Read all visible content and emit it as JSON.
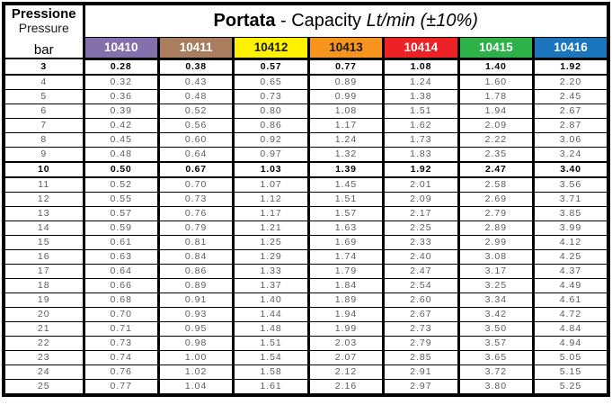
{
  "header": {
    "pressure_label_it": "Pressione",
    "pressure_label_en": "Pressure",
    "unit_label": "bar",
    "title_bold": "Portata",
    "title_regular": " - Capacity ",
    "title_italic": "Lt/min (±10%)"
  },
  "columns": [
    {
      "code": "10410",
      "color": "#8470AD",
      "text_color": "#ffffff"
    },
    {
      "code": "10411",
      "color": "#A97D5E",
      "text_color": "#ffffff"
    },
    {
      "code": "10412",
      "color": "#FFF200",
      "text_color": "#1a1a1a"
    },
    {
      "code": "10413",
      "color": "#F7941D",
      "text_color": "#1a1a1a"
    },
    {
      "code": "10414",
      "color": "#EC2227",
      "text_color": "#ffffff"
    },
    {
      "code": "10415",
      "color": "#2DB24A",
      "text_color": "#ffffff"
    },
    {
      "code": "10416",
      "color": "#1B75BC",
      "text_color": "#ffffff"
    }
  ],
  "rows": [
    {
      "bar": "3",
      "bold": true,
      "values": [
        "0.28",
        "0.38",
        "0.57",
        "0.77",
        "1.08",
        "1.40",
        "1.92"
      ]
    },
    {
      "bar": "4",
      "bold": false,
      "values": [
        "0.32",
        "0.43",
        "0.65",
        "0.89",
        "1.24",
        "1.60",
        "2.20"
      ]
    },
    {
      "bar": "5",
      "bold": false,
      "values": [
        "0.36",
        "0.48",
        "0.73",
        "0.99",
        "1.38",
        "1.78",
        "2.45"
      ]
    },
    {
      "bar": "6",
      "bold": false,
      "values": [
        "0.39",
        "0.52",
        "0.80",
        "1.08",
        "1.51",
        "1.94",
        "2.67"
      ]
    },
    {
      "bar": "7",
      "bold": false,
      "values": [
        "0.42",
        "0.56",
        "0.86",
        "1.17",
        "1.62",
        "2.09",
        "2.87"
      ]
    },
    {
      "bar": "8",
      "bold": false,
      "values": [
        "0.45",
        "0.60",
        "0.92",
        "1.24",
        "1.73",
        "2.22",
        "3.06"
      ]
    },
    {
      "bar": "9",
      "bold": false,
      "values": [
        "0.48",
        "0.64",
        "0.97",
        "1.32",
        "1.83",
        "2.35",
        "3.24"
      ]
    },
    {
      "bar": "10",
      "bold": true,
      "values": [
        "0.50",
        "0.67",
        "1.03",
        "1.39",
        "1.92",
        "2.47",
        "3.40"
      ]
    },
    {
      "bar": "11",
      "bold": false,
      "values": [
        "0.52",
        "0.70",
        "1.07",
        "1.45",
        "2.01",
        "2.58",
        "3.56"
      ]
    },
    {
      "bar": "12",
      "bold": false,
      "values": [
        "0.55",
        "0.73",
        "1.12",
        "1.51",
        "2.09",
        "2.69",
        "3.71"
      ]
    },
    {
      "bar": "13",
      "bold": false,
      "values": [
        "0.57",
        "0.76",
        "1.17",
        "1.57",
        "2.17",
        "2.79",
        "3.85"
      ]
    },
    {
      "bar": "14",
      "bold": false,
      "values": [
        "0.59",
        "0.79",
        "1.21",
        "1.63",
        "2.25",
        "2.89",
        "3.99"
      ]
    },
    {
      "bar": "15",
      "bold": false,
      "values": [
        "0.61",
        "0.81",
        "1.25",
        "1.69",
        "2.33",
        "2.99",
        "4.12"
      ]
    },
    {
      "bar": "16",
      "bold": false,
      "values": [
        "0.63",
        "0.84",
        "1.29",
        "1.74",
        "2.40",
        "3.08",
        "4.25"
      ]
    },
    {
      "bar": "17",
      "bold": false,
      "values": [
        "0.64",
        "0.86",
        "1.33",
        "1.79",
        "2.47",
        "3.17",
        "4.37"
      ]
    },
    {
      "bar": "18",
      "bold": false,
      "values": [
        "0.66",
        "0.89",
        "1.37",
        "1.84",
        "2.54",
        "3.25",
        "4.49"
      ]
    },
    {
      "bar": "19",
      "bold": false,
      "values": [
        "0.68",
        "0.91",
        "1.40",
        "1.89",
        "2.60",
        "3.34",
        "4.61"
      ]
    },
    {
      "bar": "20",
      "bold": false,
      "values": [
        "0.70",
        "0.93",
        "1.44",
        "1.94",
        "2.67",
        "3.42",
        "4.72"
      ]
    },
    {
      "bar": "21",
      "bold": false,
      "values": [
        "0.71",
        "0.95",
        "1.48",
        "1.99",
        "2.73",
        "3.50",
        "4.84"
      ]
    },
    {
      "bar": "22",
      "bold": false,
      "values": [
        "0.73",
        "0.98",
        "1.51",
        "2.03",
        "2.79",
        "3.57",
        "4.94"
      ]
    },
    {
      "bar": "23",
      "bold": false,
      "values": [
        "0.74",
        "1.00",
        "1.54",
        "2.07",
        "2.85",
        "3.65",
        "5.05"
      ]
    },
    {
      "bar": "24",
      "bold": false,
      "values": [
        "0.76",
        "1.02",
        "1.58",
        "2.12",
        "2.91",
        "3.72",
        "5.15"
      ]
    },
    {
      "bar": "25",
      "bold": false,
      "values": [
        "0.77",
        "1.04",
        "1.61",
        "2.16",
        "2.97",
        "3.80",
        "5.25"
      ]
    }
  ]
}
